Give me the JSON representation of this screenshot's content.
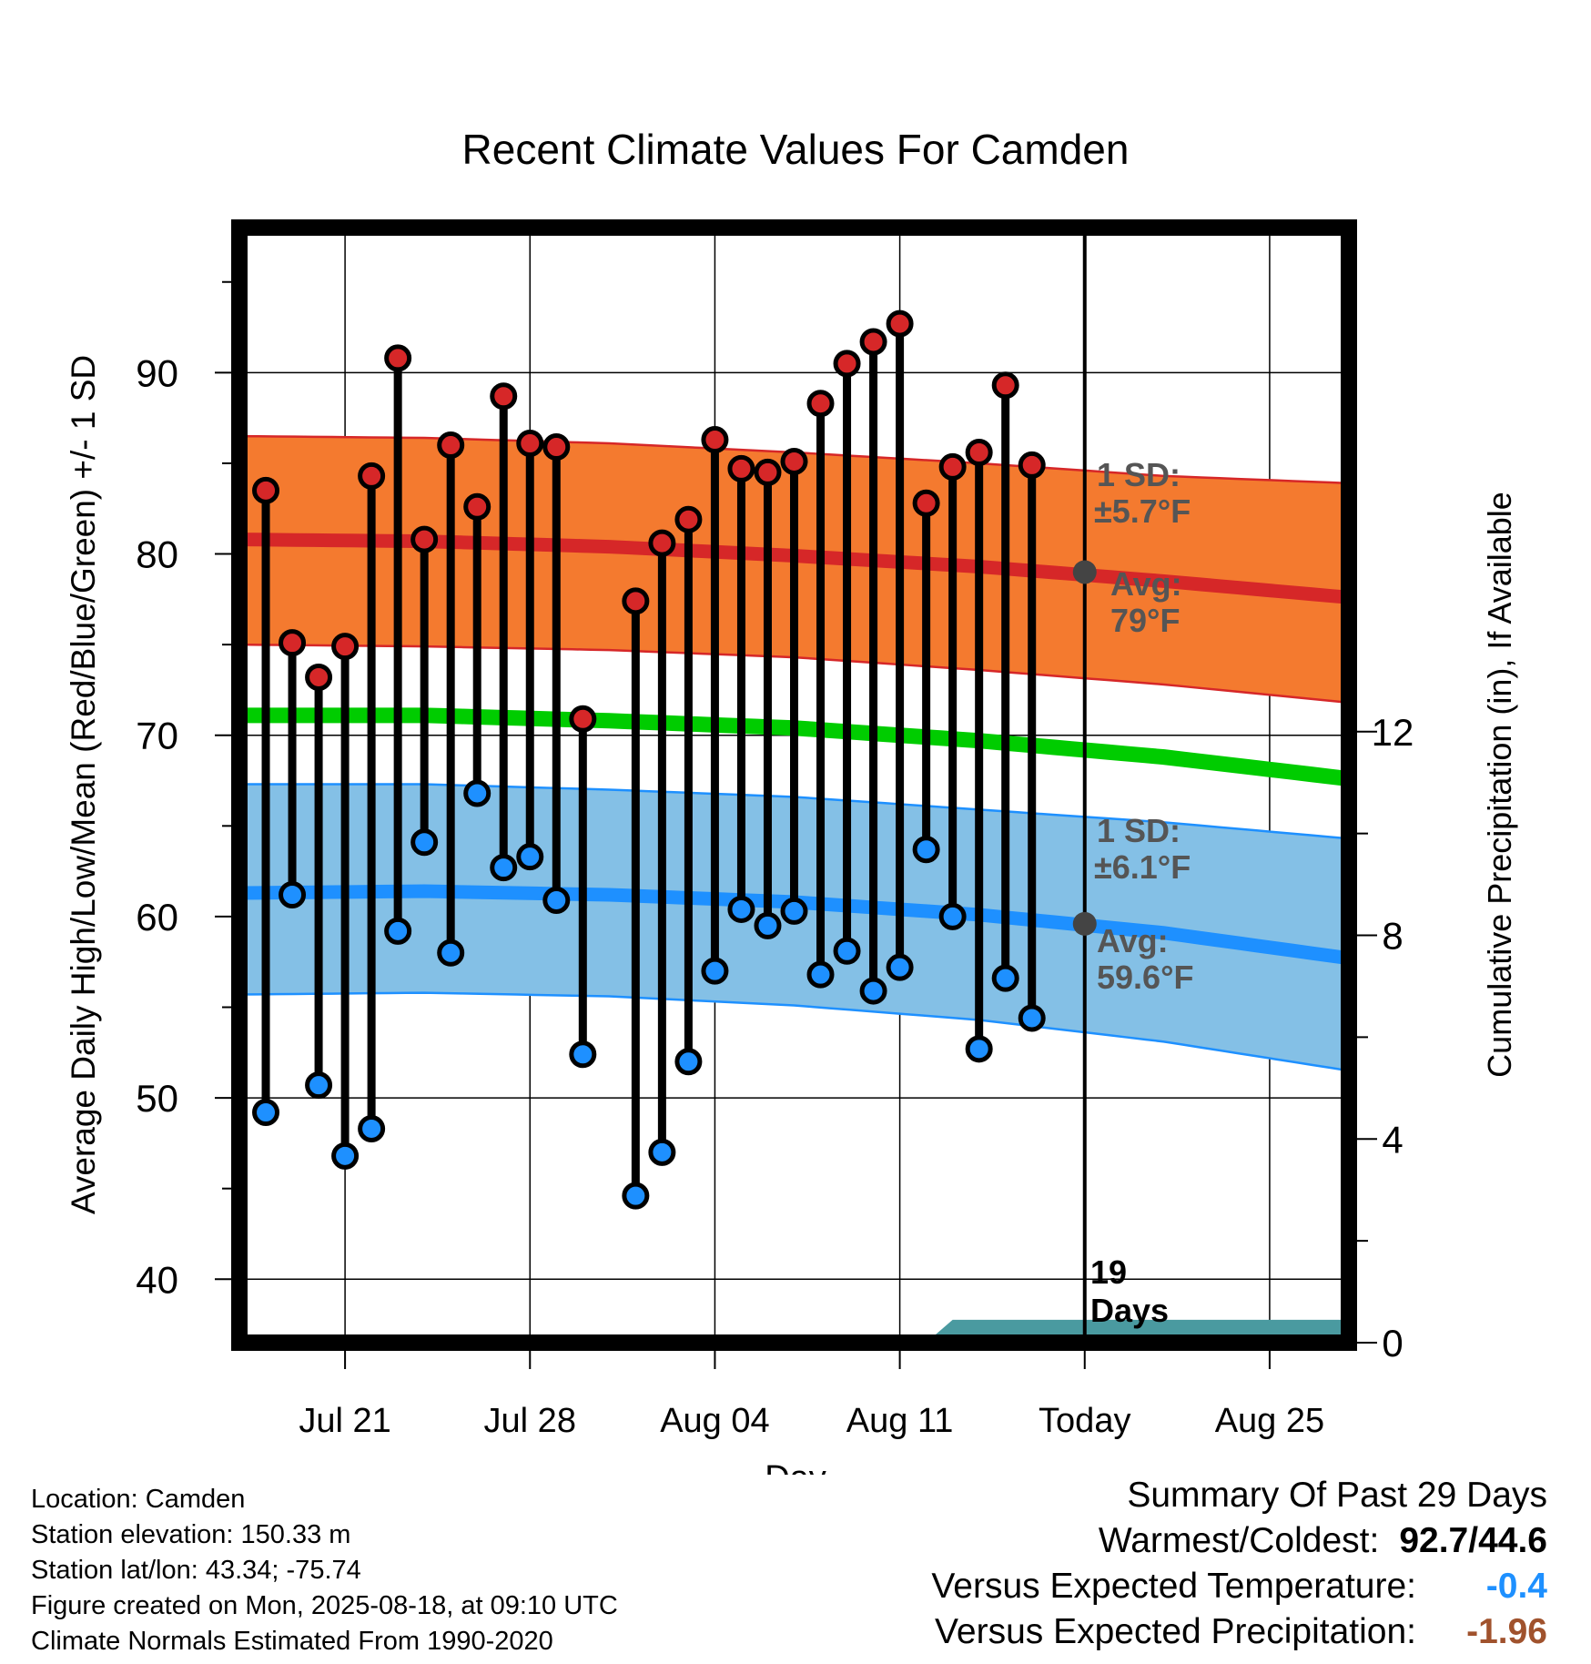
{
  "chart_data": {
    "type": "line",
    "title": "Recent Climate Values For Camden",
    "xlabel": "Day",
    "ylabel": "Average Daily High/Low/Mean (Red/Blue/Green) +/- 1 SD",
    "y2label": "Cumulative Precipitation (in), If Available",
    "ylim": [
      36.5,
      98
    ],
    "y_ticks": [
      "40",
      "50",
      "60",
      "70",
      "80",
      "90"
    ],
    "y2lim": [
      0,
      21.9
    ],
    "y2_ticks": [
      "0",
      "4",
      "8",
      "12"
    ],
    "xlim": [
      "2025-07-17",
      "2025-08-28"
    ],
    "x_ticks": [
      {
        "date": "2025-07-21",
        "label": "Jul 21"
      },
      {
        "date": "2025-07-28",
        "label": "Jul 28"
      },
      {
        "date": "2025-08-04",
        "label": "Aug 04"
      },
      {
        "date": "2025-08-11",
        "label": "Aug 11"
      },
      {
        "date": "2025-08-18",
        "label": "Today"
      },
      {
        "date": "2025-08-25",
        "label": "Aug 25"
      }
    ],
    "grid": true,
    "observations": [
      {
        "date": "2025-07-18",
        "high": 83.5,
        "low": 49.2
      },
      {
        "date": "2025-07-19",
        "high": 75.1,
        "low": 61.2
      },
      {
        "date": "2025-07-20",
        "high": 73.2,
        "low": 50.7
      },
      {
        "date": "2025-07-21",
        "high": 74.9,
        "low": 46.8
      },
      {
        "date": "2025-07-22",
        "high": 84.3,
        "low": 48.3
      },
      {
        "date": "2025-07-23",
        "high": 90.8,
        "low": 59.2
      },
      {
        "date": "2025-07-24",
        "high": 80.8,
        "low": 64.1
      },
      {
        "date": "2025-07-25",
        "high": 86.0,
        "low": 58.0
      },
      {
        "date": "2025-07-26",
        "high": 82.6,
        "low": 66.8
      },
      {
        "date": "2025-07-27",
        "high": 88.7,
        "low": 62.7
      },
      {
        "date": "2025-07-28",
        "high": 86.1,
        "low": 63.3
      },
      {
        "date": "2025-07-29",
        "high": 85.9,
        "low": 60.9
      },
      {
        "date": "2025-07-30",
        "high": 70.9,
        "low": 52.4
      },
      {
        "date": "2025-08-01",
        "high": 77.4,
        "low": 44.6
      },
      {
        "date": "2025-08-02",
        "high": 80.6,
        "low": 47.0
      },
      {
        "date": "2025-08-03",
        "high": 81.9,
        "low": 52.0
      },
      {
        "date": "2025-08-04",
        "high": 86.3,
        "low": 57.0
      },
      {
        "date": "2025-08-05",
        "high": 84.7,
        "low": 60.4
      },
      {
        "date": "2025-08-06",
        "high": 84.5,
        "low": 59.5
      },
      {
        "date": "2025-08-07",
        "high": 85.1,
        "low": 60.3
      },
      {
        "date": "2025-08-08",
        "high": 88.3,
        "low": 56.8
      },
      {
        "date": "2025-08-09",
        "high": 90.5,
        "low": 58.1
      },
      {
        "date": "2025-08-10",
        "high": 91.7,
        "low": 55.9
      },
      {
        "date": "2025-08-11",
        "high": 92.7,
        "low": 57.2
      },
      {
        "date": "2025-08-12",
        "high": 82.8,
        "low": 63.7
      },
      {
        "date": "2025-08-13",
        "high": 84.8,
        "low": 60.0
      },
      {
        "date": "2025-08-14",
        "high": 85.6,
        "low": 52.7
      },
      {
        "date": "2025-08-15",
        "high": 89.3,
        "low": 56.6
      },
      {
        "date": "2025-08-16",
        "high": 84.9,
        "low": 54.4
      }
    ],
    "normals": {
      "dates": [
        "2025-07-17",
        "2025-07-24",
        "2025-07-31",
        "2025-08-07",
        "2025-08-14",
        "2025-08-21",
        "2025-08-28"
      ],
      "high_mean": [
        80.8,
        80.7,
        80.4,
        79.9,
        79.3,
        78.5,
        77.6
      ],
      "high_upper": [
        86.5,
        86.4,
        86.1,
        85.6,
        85.0,
        84.3,
        83.9
      ],
      "high_lower": [
        75.0,
        74.9,
        74.7,
        74.3,
        73.6,
        72.8,
        71.8
      ],
      "low_mean": [
        61.3,
        61.4,
        61.2,
        60.8,
        60.1,
        59.1,
        57.7
      ],
      "low_upper": [
        67.3,
        67.3,
        67.0,
        66.6,
        65.9,
        65.2,
        64.3
      ],
      "low_lower": [
        55.7,
        55.8,
        55.6,
        55.1,
        54.3,
        53.1,
        51.5
      ],
      "avg_mean": [
        71.1,
        71.1,
        70.8,
        70.4,
        69.7,
        68.8,
        67.6
      ]
    },
    "precipitation": {
      "dates": [
        "2025-08-12",
        "2025-08-13",
        "2025-08-28"
      ],
      "values": [
        0,
        0.45,
        0.45
      ]
    },
    "today": "2025-08-18",
    "today_markers": {
      "high_avg": 79.0,
      "low_avg": 59.6
    },
    "annotations": {
      "high_sd": "1 SD:",
      "high_sd_value": "±5.7°F",
      "high_avg": "Avg:",
      "high_avg_value": "79°F",
      "low_sd": "1 SD:",
      "low_sd_value": "±6.1°F",
      "low_avg": "Avg:",
      "low_avg_value": "59.6°F",
      "days_number": "19",
      "days_label": "Days"
    },
    "colors": {
      "high_band": "#f47a2f",
      "high_line": "#d62728",
      "low_band": "#84c0e6",
      "low_line": "#1e90ff",
      "mean_line": "#00cc00",
      "high_dot": "#d62728",
      "low_dot": "#1e90ff",
      "precip": "#4a9aa0",
      "today_dot": "#444444",
      "annotation": "#555555"
    }
  },
  "info": {
    "location": "Location: Camden",
    "elevation": "Station elevation: 150.33 m",
    "latlon": "Station lat/lon: 43.34; -75.74",
    "created": "Figure created on Mon, 2025-08-18, at 09:10 UTC",
    "normals": "Climate Normals Estimated From 1990-2020"
  },
  "summary": {
    "title": "Summary Of Past 29 Days",
    "warm_cold_label": "Warmest/Coldest:",
    "warm_cold_value": "92.7/44.6",
    "temp_label": "Versus Expected Temperature:",
    "temp_value": "-0.4",
    "temp_color": "#1e90ff",
    "precip_label": "Versus Expected Precipitation:",
    "precip_value": "-1.96",
    "precip_color": "#a0522d"
  }
}
